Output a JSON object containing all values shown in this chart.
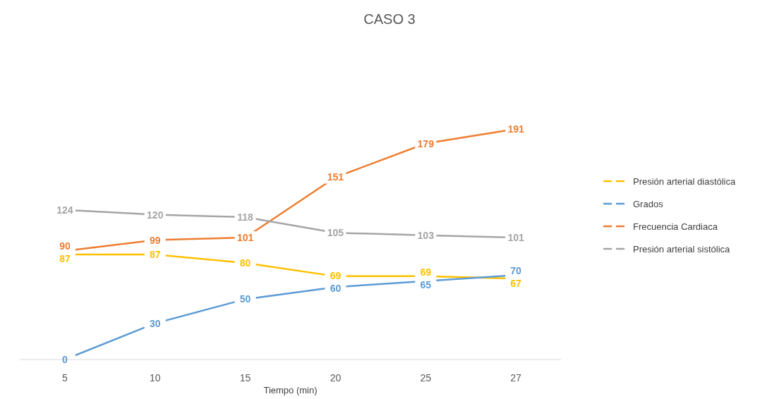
{
  "chart_data": {
    "type": "line",
    "title": "CASO 3",
    "xlabel": "Tiempo (min)",
    "categories": [
      "5",
      "10",
      "15",
      "20",
      "25",
      "27"
    ],
    "tick_labels": "x",
    "data_labels": true,
    "legend": "right",
    "line_style": "solid",
    "series": [
      {
        "name": "Presión arterial diastólica",
        "color": "#ffc000",
        "values": [
          87,
          87,
          80,
          69,
          69,
          67
        ]
      },
      {
        "name": "Grados",
        "color": "#5b9bd5",
        "values": [
          0,
          30,
          50,
          60,
          65,
          70
        ]
      },
      {
        "name": "Frecuencia Cardiaca",
        "color": "#ed7d31",
        "values": [
          90,
          99,
          101,
          151,
          179,
          191
        ]
      },
      {
        "name": "Presión arterial sistólica",
        "color": "#a5a5a5",
        "values": [
          124,
          120,
          118,
          105,
          103,
          101
        ]
      }
    ]
  }
}
